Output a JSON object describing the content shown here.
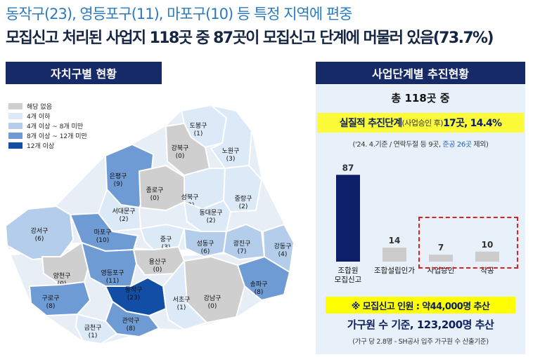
{
  "headline": {
    "line1": "동작구(23), 영등포구(11), 마포구(10) 등 특정 지역에 편중",
    "line2": "모집신고 처리된 사업지 118곳 중 87곳이 모집신고 단계에 머물러 있음(73.7%)"
  },
  "map": {
    "banner": "자치구별 현황",
    "legend": [
      {
        "label": "해당 없음",
        "color": "#cfcfcf"
      },
      {
        "label": "4개 이하",
        "color": "#dce9f7"
      },
      {
        "label": "4개 이상 ~ 8개 미만",
        "color": "#b3cdeb"
      },
      {
        "label": "8개 이상 ~ 12개 미만",
        "color": "#6f9bd4"
      },
      {
        "label": "12개 이상",
        "color": "#134ea6"
      }
    ],
    "districts": [
      {
        "name": "도봉구",
        "count": "(1)",
        "level": 1
      },
      {
        "name": "노원구",
        "count": "(3)",
        "level": 1
      },
      {
        "name": "강북구",
        "count": "(0)",
        "level": 0
      },
      {
        "name": "은평구",
        "count": "(9)",
        "level": 3
      },
      {
        "name": "종로구",
        "count": "(0)",
        "level": 0
      },
      {
        "name": "성북구",
        "count": "(3)",
        "level": 1
      },
      {
        "name": "중랑구",
        "count": "(2)",
        "level": 1
      },
      {
        "name": "서대문구",
        "count": "(2)",
        "level": 1
      },
      {
        "name": "동대문구",
        "count": "(2)",
        "level": 1
      },
      {
        "name": "강서구",
        "count": "(6)",
        "level": 2
      },
      {
        "name": "마포구",
        "count": "(10)",
        "level": 3
      },
      {
        "name": "중구",
        "count": "(3)",
        "level": 1
      },
      {
        "name": "성동구",
        "count": "(6)",
        "level": 2
      },
      {
        "name": "광진구",
        "count": "(7)",
        "level": 2
      },
      {
        "name": "강동구",
        "count": "(4)",
        "level": 2
      },
      {
        "name": "용산구",
        "count": "(0)",
        "level": 0
      },
      {
        "name": "양천구",
        "count": "(0)",
        "level": 0
      },
      {
        "name": "영등포구",
        "count": "(11)",
        "level": 3
      },
      {
        "name": "동작구",
        "count": "(23)",
        "level": 4
      },
      {
        "name": "강남구",
        "count": "(0)",
        "level": 0
      },
      {
        "name": "송파구",
        "count": "(8)",
        "level": 3
      },
      {
        "name": "구로구",
        "count": "(8)",
        "level": 3
      },
      {
        "name": "서초구",
        "count": "(1)",
        "level": 1
      },
      {
        "name": "관악구",
        "count": "(8)",
        "level": 3
      },
      {
        "name": "금천구",
        "count": "(1)",
        "level": 1
      }
    ]
  },
  "stages": {
    "banner": "사업단계별 추진현황",
    "total": "총 118곳 중",
    "highlight_main": "실질적 추진단계",
    "highlight_small": "(사업승인 후)",
    "highlight_tail": " 17곳, 14.4%",
    "note_prefix": "('24. 4.기준 / 연락두절 등 9곳, ",
    "note_blue": "준공 26곳",
    "note_suffix": " 제외)",
    "footer_yellow": "※ 모집신고 인원 : 약44,000명 추산",
    "footer_main": "가구원 수 기준, 123,200명 추산",
    "footer_note": "(가구 당 2.8명 - SH공사 입주 가구원 수 산출기준)"
  },
  "chart_data": {
    "type": "bar",
    "categories": [
      "조합원\n모집신고",
      "조합설립인가",
      "사업승인",
      "착공"
    ],
    "values": [
      87,
      14,
      7,
      10
    ],
    "colors": [
      "#0e1f6a",
      "#cccccc",
      "#cccccc",
      "#cccccc"
    ],
    "title": "",
    "xlabel": "",
    "ylabel": "",
    "ylim": [
      0,
      90
    ]
  }
}
